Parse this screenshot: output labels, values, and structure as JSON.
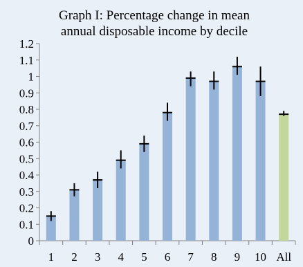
{
  "chart_data": {
    "type": "bar",
    "title_lines": [
      "Graph I: Percentage change in mean",
      "annual  disposable income by decile"
    ],
    "categories": [
      "1",
      "2",
      "3",
      "4",
      "5",
      "6",
      "7",
      "8",
      "9",
      "10",
      "All"
    ],
    "values": [
      0.15,
      0.31,
      0.37,
      0.49,
      0.59,
      0.78,
      0.99,
      0.97,
      1.06,
      0.97,
      0.77
    ],
    "error_low": [
      0.12,
      0.27,
      0.32,
      0.44,
      0.54,
      0.73,
      0.94,
      0.92,
      1.01,
      0.88,
      0.76
    ],
    "error_high": [
      0.18,
      0.35,
      0.42,
      0.55,
      0.64,
      0.84,
      1.03,
      1.03,
      1.12,
      1.06,
      0.79
    ],
    "bar_colors": [
      "#95b3d7",
      "#95b3d7",
      "#95b3d7",
      "#95b3d7",
      "#95b3d7",
      "#95b3d7",
      "#95b3d7",
      "#95b3d7",
      "#95b3d7",
      "#95b3d7",
      "#c3d69b"
    ],
    "ylim": [
      0,
      1.2
    ],
    "yticks": [
      "0",
      "0.1",
      "0.2",
      "0.3",
      "0.4",
      "0.5",
      "0.6",
      "0.7",
      "0.8",
      "0.9",
      "1",
      "1.1",
      "1.2"
    ],
    "grid": false,
    "legend": "none",
    "background_color": "#eaf0f8",
    "axis_color": "#808080",
    "error_bar_color": "#000000"
  }
}
